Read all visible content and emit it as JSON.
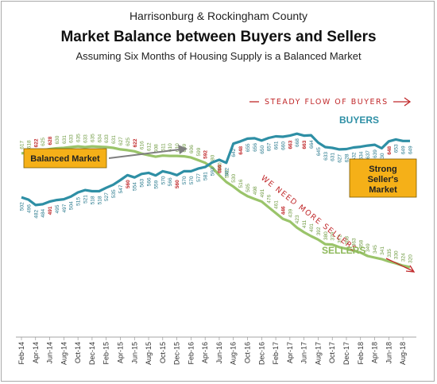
{
  "title": "Harrisonburg & Rockingham County",
  "subtitle": "Market Balance between Buyers and Sellers",
  "caption": "Assuming Six Months of Housing Supply is a Balanced Market",
  "annotations": {
    "balanced": "Balanced Market",
    "strong_line1": "Strong",
    "strong_line2": "Seller's",
    "strong_line3": "Market",
    "steady": "STEADY FLOW OF BUYERS",
    "need": "WE NEED MORE SELLERS"
  },
  "colors": {
    "buyers": "#2e8fa5",
    "sellers": "#9ac46a",
    "highlight": "#c0282a",
    "box": "#f5b018",
    "arrow": "#7f7f7f"
  },
  "chart_data": {
    "type": "line",
    "x": [
      "Feb-14",
      "Mar-14",
      "Apr-14",
      "May-14",
      "Jun-14",
      "Jul-14",
      "Aug-14",
      "Sep-14",
      "Oct-14",
      "Nov-14",
      "Dec-14",
      "Jan-15",
      "Feb-15",
      "Mar-15",
      "Apr-15",
      "May-15",
      "Jun-15",
      "Jul-15",
      "Aug-15",
      "Sep-15",
      "Oct-15",
      "Nov-15",
      "Dec-15",
      "Jan-16",
      "Feb-16",
      "Mar-16",
      "Apr-16",
      "May-16",
      "Jun-16",
      "Jul-16",
      "Aug-16",
      "Sep-16",
      "Oct-16",
      "Nov-16",
      "Dec-16",
      "Jan-17",
      "Feb-17",
      "Mar-17",
      "Apr-17",
      "May-17",
      "Jun-17",
      "Jul-17",
      "Aug-17",
      "Sep-17",
      "Oct-17",
      "Nov-17",
      "Dec-17",
      "Jan-18",
      "Feb-18",
      "Mar-18",
      "Apr-18",
      "May-18",
      "Jun-18",
      "Jul-18",
      "Aug-18",
      "Sep-18"
    ],
    "xtick_labels": [
      "Feb-14",
      "Apr-14",
      "Jun-14",
      "Aug-14",
      "Oct-14",
      "Dec-14",
      "Feb-15",
      "Apr-15",
      "Jun-15",
      "Aug-15",
      "Oct-15",
      "Dec-15",
      "Feb-16",
      "Apr-16",
      "Jun-16",
      "Aug-16",
      "Oct-16",
      "Dec-16",
      "Feb-17",
      "Apr-17",
      "Jun-17",
      "Aug-17",
      "Oct-17",
      "Dec-17",
      "Feb-18",
      "Apr-18",
      "Jun-18",
      "Aug-18"
    ],
    "series": [
      {
        "name": "BUYERS",
        "values": [
          502,
          496,
          482,
          484,
          491,
          495,
          497,
          504,
          515,
          521,
          518,
          518,
          527,
          535,
          547,
          560,
          554,
          563,
          566,
          559,
          570,
          566,
          560,
          570,
          570,
          577,
          581,
          593,
          600,
          592,
          642,
          648,
          655,
          656,
          650,
          657,
          661,
          660,
          663,
          668,
          663,
          664,
          645,
          633,
          631,
          627,
          628,
          632,
          634,
          637,
          639,
          630,
          648,
          653,
          649,
          649
        ],
        "highlight": [
          491,
          560,
          600,
          663,
          341,
          648
        ]
      },
      {
        "name": "SELLERS",
        "values": [
          617,
          618,
          622,
          625,
          628,
          630,
          631,
          633,
          635,
          633,
          635,
          634,
          633,
          631,
          627,
          625,
          622,
          616,
          612,
          608,
          611,
          610,
          610,
          609,
          606,
          599,
          592,
          580,
          560,
          542,
          530,
          516,
          505,
          498,
          491,
          476,
          461,
          446,
          439,
          423,
          411,
          401,
          392,
          380,
          379,
          372,
          368,
          363,
          358,
          349,
          345,
          341,
          335,
          330,
          324,
          320
        ],
        "highlight": [
          628,
          622,
          600,
          592,
          446
        ]
      }
    ],
    "ylim": [
      300,
      700
    ]
  }
}
